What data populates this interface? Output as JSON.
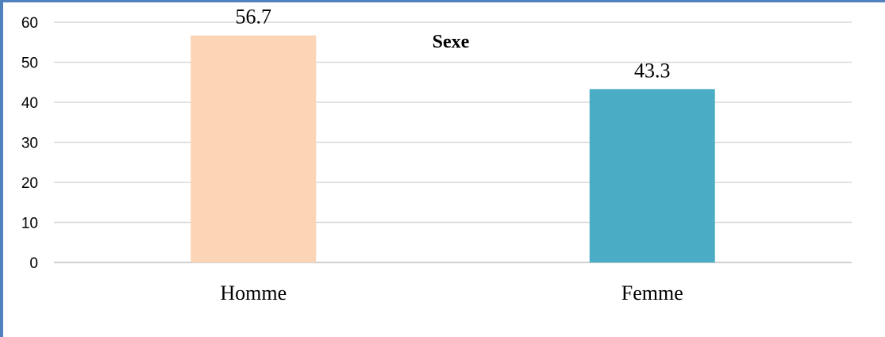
{
  "chart_data": {
    "type": "bar",
    "title": "Sexe",
    "categories": [
      "Homme",
      "Femme"
    ],
    "values": [
      56.7,
      43.3
    ],
    "data_labels": [
      "56.7",
      "43.3"
    ],
    "colors": [
      "#fbd5b5",
      "#4bacc6"
    ],
    "ylim": [
      0,
      60
    ],
    "yticks": [
      0,
      10,
      20,
      30,
      40,
      50,
      60
    ],
    "xlabel": "",
    "ylabel": "",
    "grid": true,
    "legend": "none"
  }
}
